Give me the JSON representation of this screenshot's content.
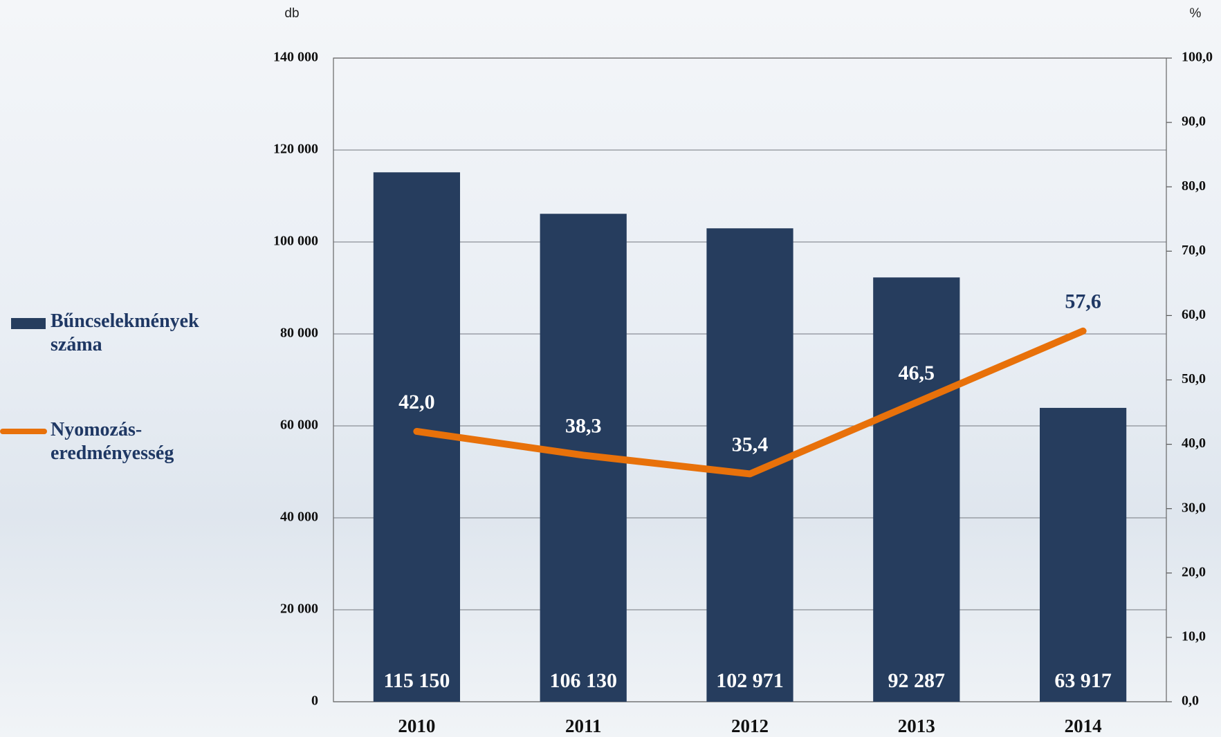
{
  "chart_data": {
    "type": "bar",
    "y_unit_label": "db",
    "y2_unit_label": "%",
    "categories": [
      "2010",
      "2011",
      "2012",
      "2013",
      "2014"
    ],
    "series": [
      {
        "name": "Bűncselekmények száma",
        "type": "bar",
        "color": "#263d5e",
        "values": [
          115150,
          106130,
          102971,
          92287,
          63917
        ],
        "value_labels": [
          "115 150",
          "106 130",
          "102 971",
          "92 287",
          "63 917"
        ]
      },
      {
        "name": "Nyomozás-eredményesség",
        "type": "line",
        "axis": "y2",
        "color": "#e8710a",
        "values": [
          42.0,
          38.3,
          35.4,
          46.5,
          57.6
        ],
        "value_labels": [
          "42,0",
          "38,3",
          "35,4",
          "46,5",
          "57,6"
        ]
      }
    ],
    "ylim": [
      0,
      140000
    ],
    "yticks": [
      {
        "value": 0,
        "label": "0"
      },
      {
        "value": 20000,
        "label": "20 000"
      },
      {
        "value": 40000,
        "label": "40 000"
      },
      {
        "value": 60000,
        "label": "60 000"
      },
      {
        "value": 80000,
        "label": "80 000"
      },
      {
        "value": 100000,
        "label": "100 000"
      },
      {
        "value": 120000,
        "label": "120 000"
      },
      {
        "value": 140000,
        "label": "140 000"
      }
    ],
    "y2lim": [
      0,
      100
    ],
    "y2ticks": [
      {
        "value": 0,
        "label": "0,0"
      },
      {
        "value": 10,
        "label": "10,0"
      },
      {
        "value": 20,
        "label": "20,0"
      },
      {
        "value": 30,
        "label": "30,0"
      },
      {
        "value": 40,
        "label": "40,0"
      },
      {
        "value": 50,
        "label": "50,0"
      },
      {
        "value": 60,
        "label": "60,0"
      },
      {
        "value": 70,
        "label": "70,0"
      },
      {
        "value": 80,
        "label": "80,0"
      },
      {
        "value": 90,
        "label": "90,0"
      },
      {
        "value": 100,
        "label": "100,0"
      }
    ],
    "grid": true
  }
}
